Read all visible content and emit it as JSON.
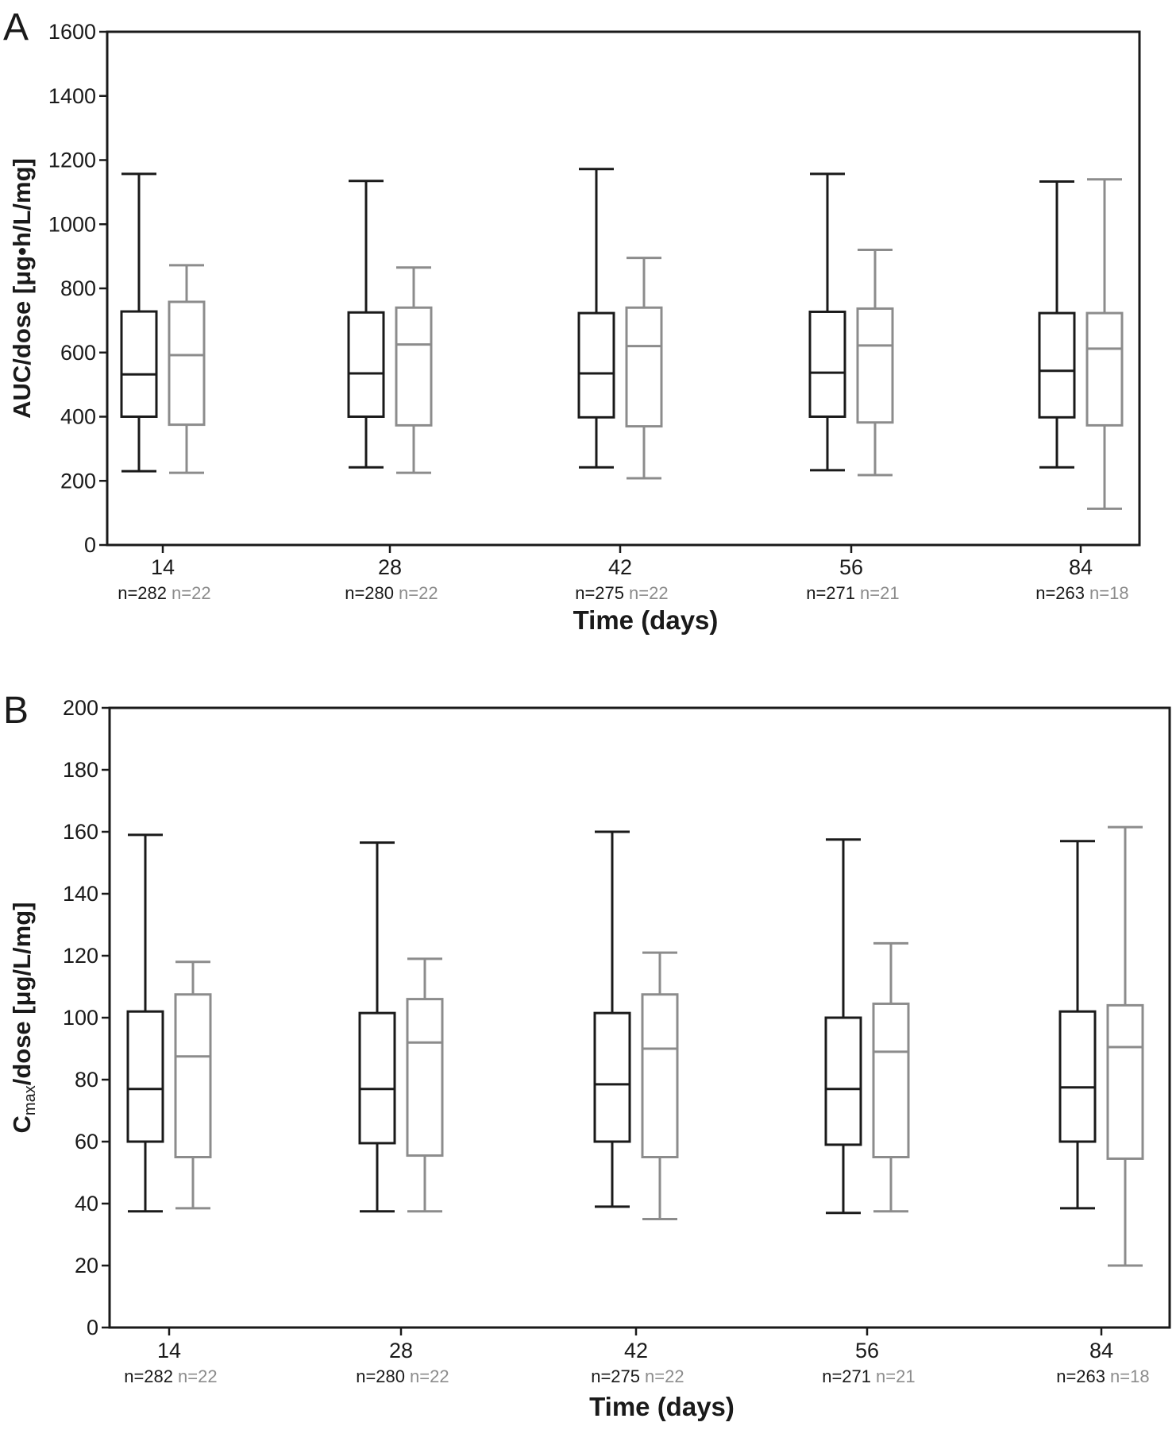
{
  "chart_data": [
    {
      "type": "box",
      "panel_label": "A",
      "ylabel": "AUC/dose [μg•h/L/mg]",
      "xlabel": "Time (days)",
      "ylim": [
        0,
        1600
      ],
      "yticks": [
        0,
        200,
        400,
        600,
        800,
        1000,
        1200,
        1400,
        1600
      ],
      "categories": [
        "14",
        "28",
        "42",
        "56",
        "84"
      ],
      "colors": {
        "series1": "#1a1a1a",
        "series2": "#8c8c8c"
      },
      "series": [
        {
          "counts": [
            "n=282",
            "n=280",
            "n=275",
            "n=271",
            "n=263"
          ],
          "boxes": [
            {
              "min": 230,
              "q1": 400,
              "median": 532,
              "q3": 728,
              "max": 1157
            },
            {
              "min": 242,
              "q1": 400,
              "median": 535,
              "q3": 725,
              "max": 1135
            },
            {
              "min": 242,
              "q1": 398,
              "median": 535,
              "q3": 723,
              "max": 1172
            },
            {
              "min": 233,
              "q1": 400,
              "median": 537,
              "q3": 727,
              "max": 1157
            },
            {
              "min": 242,
              "q1": 398,
              "median": 543,
              "q3": 723,
              "max": 1133
            }
          ]
        },
        {
          "counts": [
            "n=22",
            "n=22",
            "n=22",
            "n=21",
            "n=18"
          ],
          "boxes": [
            {
              "min": 225,
              "q1": 375,
              "median": 592,
              "q3": 758,
              "max": 872
            },
            {
              "min": 225,
              "q1": 373,
              "median": 625,
              "q3": 740,
              "max": 865
            },
            {
              "min": 208,
              "q1": 370,
              "median": 620,
              "q3": 740,
              "max": 895
            },
            {
              "min": 218,
              "q1": 382,
              "median": 622,
              "q3": 737,
              "max": 920
            },
            {
              "min": 113,
              "q1": 373,
              "median": 612,
              "q3": 723,
              "max": 1140
            }
          ]
        }
      ]
    },
    {
      "type": "box",
      "panel_label": "B",
      "ylabel": "Cmax/dose [μg/L/mg]",
      "ylabel_main": "C",
      "ylabel_sub": "max",
      "ylabel_rest": "/dose [μg/L/mg]",
      "xlabel": "Time (days)",
      "ylim": [
        0,
        200
      ],
      "yticks": [
        0,
        20,
        40,
        60,
        80,
        100,
        120,
        140,
        160,
        180,
        200
      ],
      "categories": [
        "14",
        "28",
        "42",
        "56",
        "84"
      ],
      "colors": {
        "series1": "#1a1a1a",
        "series2": "#8c8c8c"
      },
      "series": [
        {
          "counts": [
            "n=282",
            "n=280",
            "n=275",
            "n=271",
            "n=263"
          ],
          "boxes": [
            {
              "min": 37.5,
              "q1": 60,
              "median": 77,
              "q3": 102,
              "max": 159
            },
            {
              "min": 37.5,
              "q1": 59.5,
              "median": 77,
              "q3": 101.5,
              "max": 156.5
            },
            {
              "min": 39,
              "q1": 60,
              "median": 78.5,
              "q3": 101.5,
              "max": 160
            },
            {
              "min": 37,
              "q1": 59,
              "median": 77,
              "q3": 100,
              "max": 157.5
            },
            {
              "min": 38.5,
              "q1": 60,
              "median": 77.5,
              "q3": 102,
              "max": 157
            }
          ]
        },
        {
          "counts": [
            "n=22",
            "n=22",
            "n=22",
            "n=21",
            "n=18"
          ],
          "boxes": [
            {
              "min": 38.5,
              "q1": 55,
              "median": 87.5,
              "q3": 107.5,
              "max": 118
            },
            {
              "min": 37.5,
              "q1": 55.5,
              "median": 92,
              "q3": 106,
              "max": 119
            },
            {
              "min": 35,
              "q1": 55,
              "median": 90,
              "q3": 107.5,
              "max": 121
            },
            {
              "min": 37.5,
              "q1": 55,
              "median": 89,
              "q3": 104.5,
              "max": 124
            },
            {
              "min": 20,
              "q1": 54.5,
              "median": 90.5,
              "q3": 104,
              "max": 161.5
            }
          ]
        }
      ]
    }
  ]
}
